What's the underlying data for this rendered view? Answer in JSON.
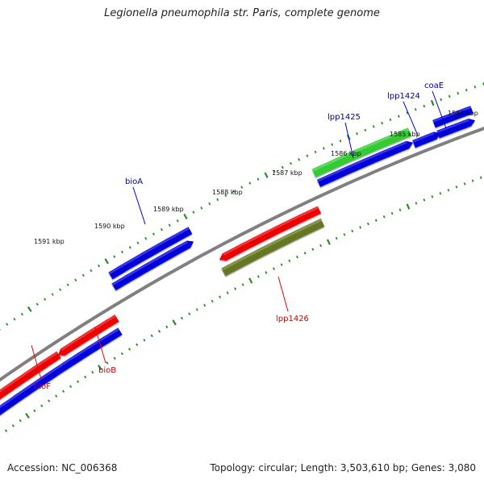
{
  "title": "Legionella pneumophila str. Paris, complete genome",
  "footer": {
    "accession": "Accession: NC_006368",
    "topology": "Topology: circular; Length: 3,503,610 bp; Genes: 3,080"
  },
  "colors": {
    "backbone": "#808080",
    "ticks": "#2a8a2a",
    "cds_forward": "#0000dd",
    "cds_reverse": "#ee0000",
    "gene_forward": "#33cc33",
    "gene_reverse": "#667722",
    "label_forward": "#00008b",
    "label_reverse": "#cc0000"
  },
  "tick_labels": [
    {
      "text": "1591 kbp"
    },
    {
      "text": "1590 kbp"
    },
    {
      "text": "1589 kbp"
    },
    {
      "text": "1588 kbp"
    },
    {
      "text": "1587 kbp"
    },
    {
      "text": "1586 kbp"
    },
    {
      "text": "1585 kbp"
    },
    {
      "text": "1584 kbp"
    }
  ],
  "gene_labels": [
    {
      "text": "bioA",
      "strand": "forward"
    },
    {
      "text": "lpp1425",
      "strand": "forward"
    },
    {
      "text": "lpp1424",
      "strand": "forward"
    },
    {
      "text": "coaE",
      "strand": "forward"
    },
    {
      "text": "lpp1426",
      "strand": "reverse"
    },
    {
      "text": "bioB",
      "strand": "reverse"
    },
    {
      "text": "bioF",
      "strand": "reverse"
    }
  ]
}
